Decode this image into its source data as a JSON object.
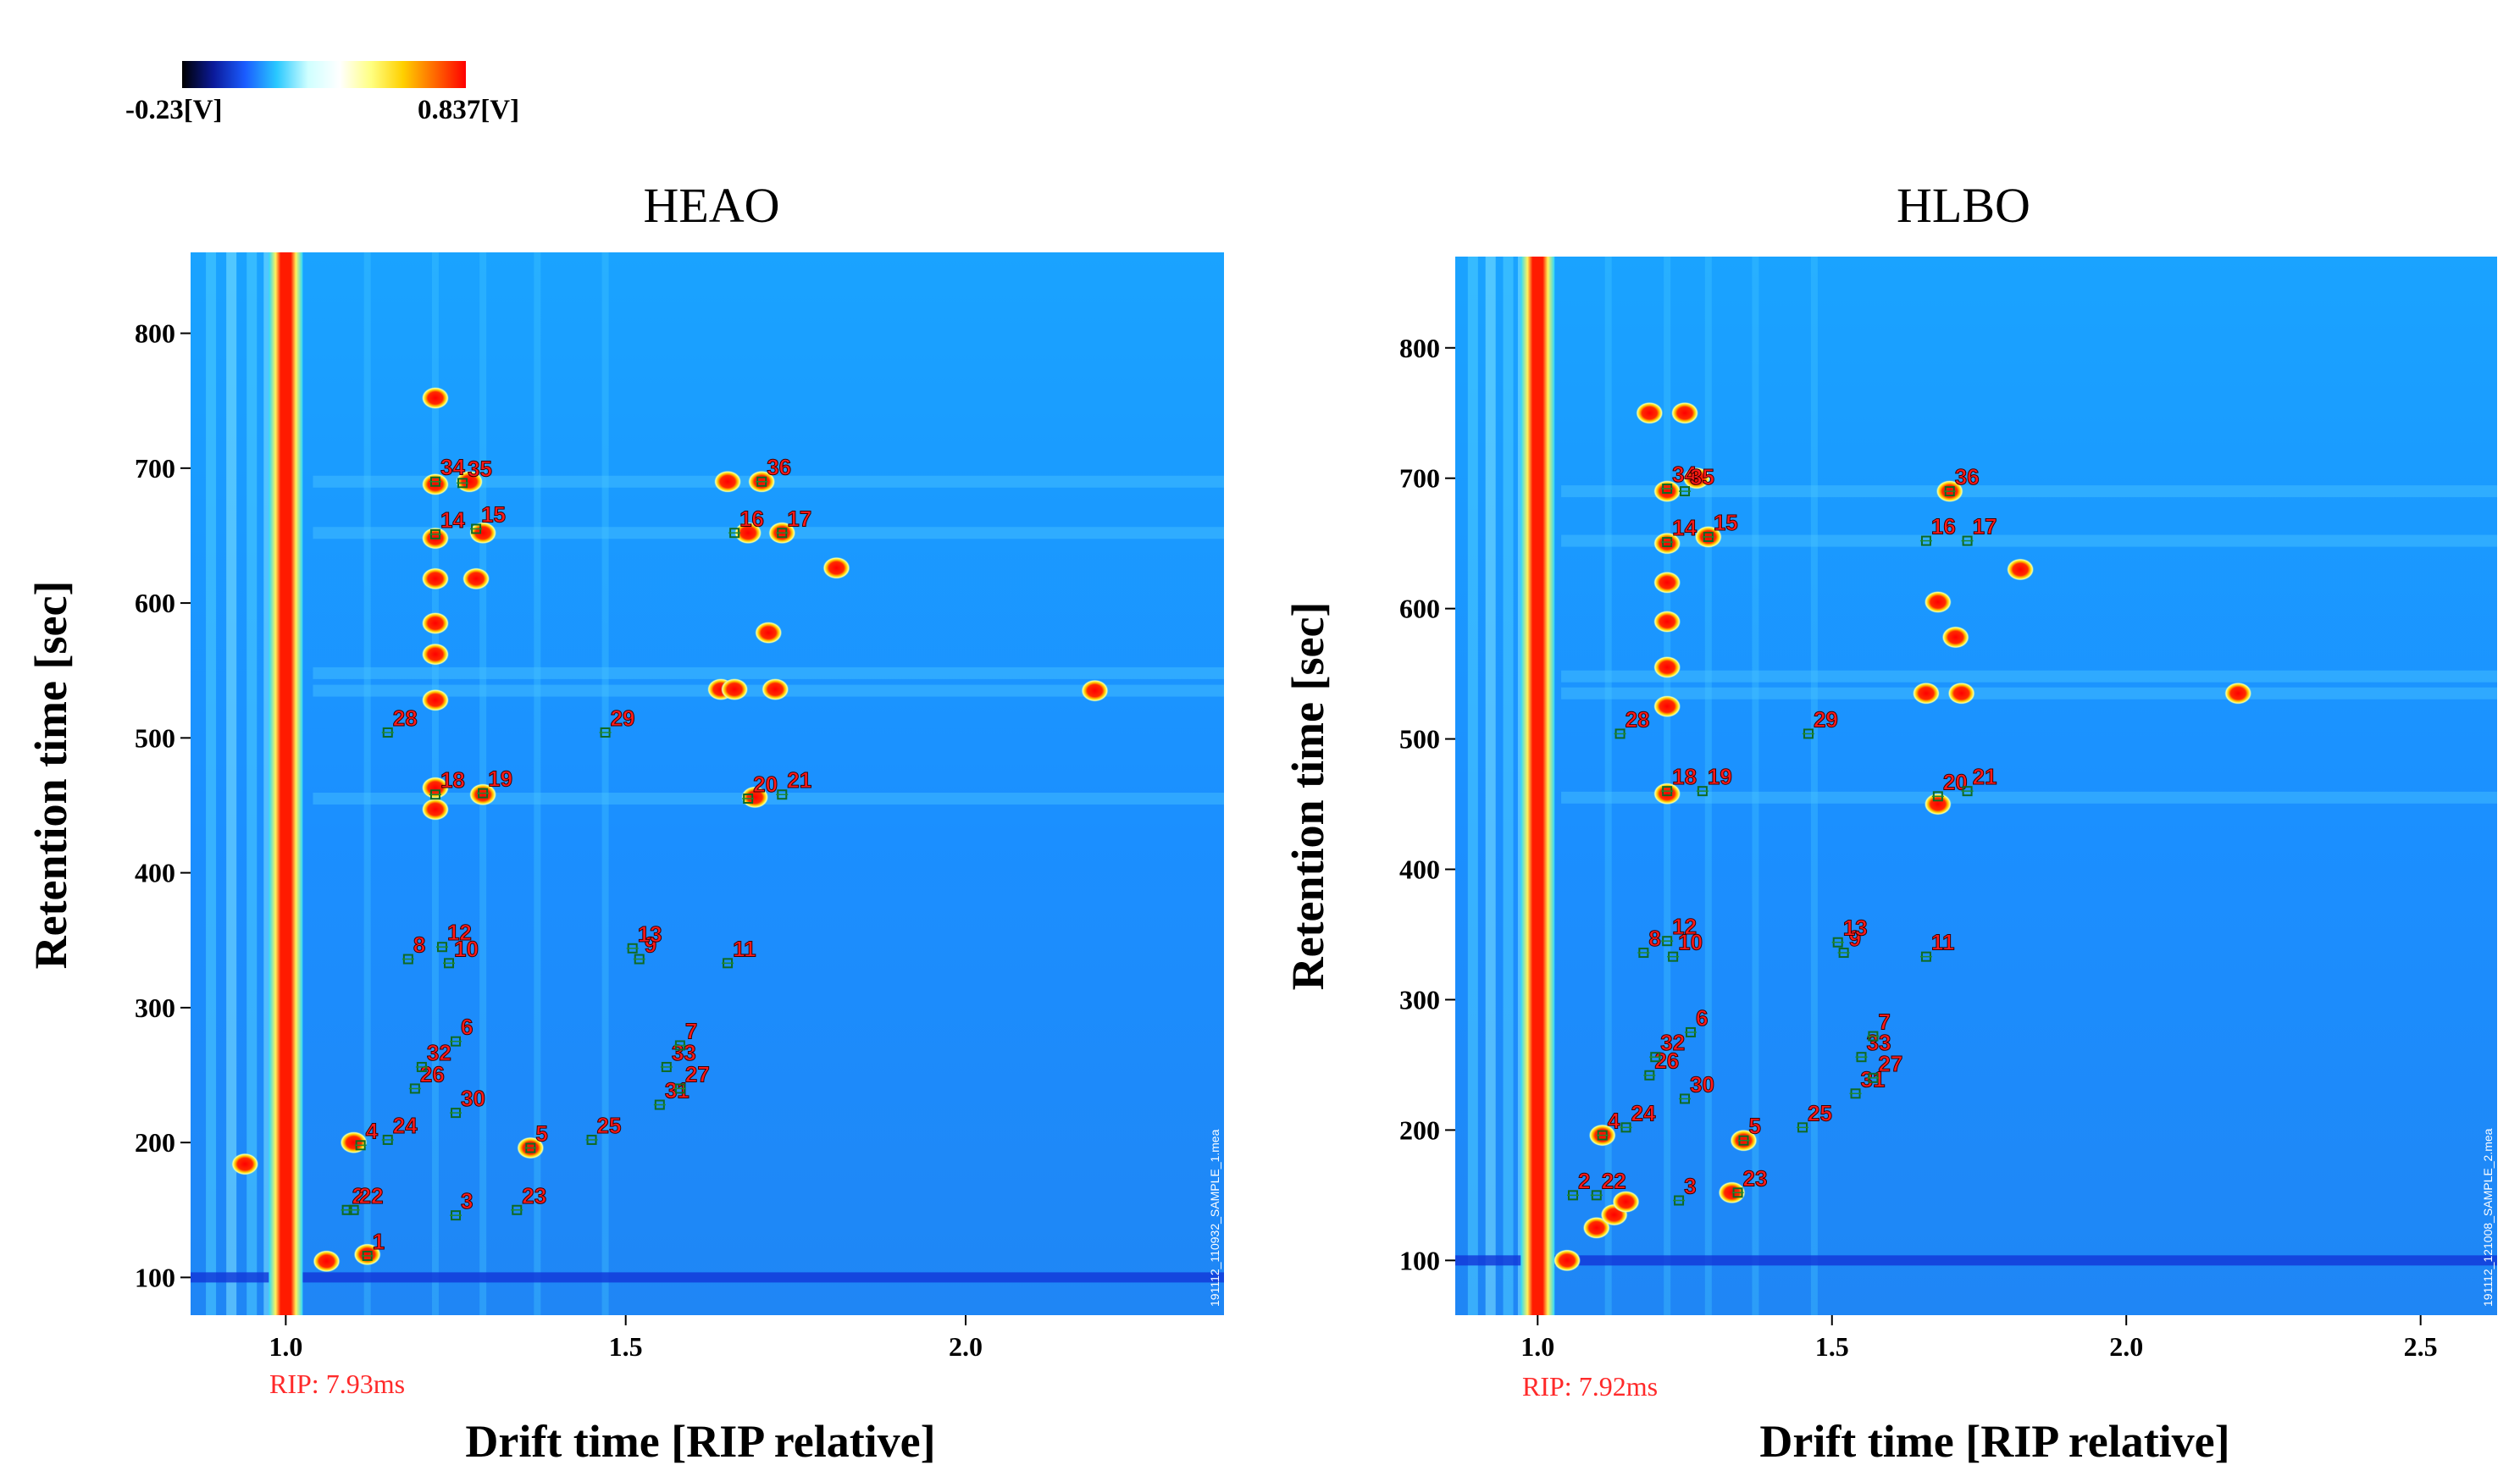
{
  "colorbar": {
    "min_label": "-0.23[V]",
    "max_label": "0.837[V]",
    "stops": [
      "#000000",
      "#0b1a9a",
      "#1a5cff",
      "#29c8ff",
      "#cfffff",
      "#ffffff",
      "#ffff80",
      "#ffd000",
      "#ff6a00",
      "#ff0000"
    ]
  },
  "chart_data": [
    {
      "type": "heatmap",
      "title": "HEAO",
      "xlabel": "Drift time [RIP relative]",
      "ylabel": "Retention time [sec]",
      "xlim": [
        0.86,
        2.38
      ],
      "ylim": [
        72,
        860
      ],
      "xticks": [
        1.0,
        1.5,
        2.0
      ],
      "xtick_labels": [
        "1.0",
        "1.5",
        "2.0"
      ],
      "yticks": [
        100,
        200,
        300,
        400,
        500,
        600,
        700,
        800
      ],
      "ytick_labels": [
        "100",
        "200",
        "300",
        "400",
        "500",
        "600",
        "700",
        "800"
      ],
      "rip_label": "RIP: 7.93ms",
      "footer": "191112_110932_SAMPLE_1.mea",
      "markers": [
        {
          "id": "1",
          "x": 1.12,
          "y": 116
        },
        {
          "id": "2",
          "x": 1.09,
          "y": 150
        },
        {
          "id": "22",
          "x": 1.1,
          "y": 150
        },
        {
          "id": "3",
          "x": 1.25,
          "y": 146
        },
        {
          "id": "23",
          "x": 1.34,
          "y": 150
        },
        {
          "id": "4",
          "x": 1.11,
          "y": 198
        },
        {
          "id": "24",
          "x": 1.15,
          "y": 202
        },
        {
          "id": "5",
          "x": 1.36,
          "y": 196
        },
        {
          "id": "25",
          "x": 1.45,
          "y": 202
        },
        {
          "id": "26",
          "x": 1.19,
          "y": 240
        },
        {
          "id": "32",
          "x": 1.2,
          "y": 256
        },
        {
          "id": "30",
          "x": 1.25,
          "y": 222
        },
        {
          "id": "6",
          "x": 1.25,
          "y": 275
        },
        {
          "id": "31",
          "x": 1.55,
          "y": 228
        },
        {
          "id": "27",
          "x": 1.58,
          "y": 240
        },
        {
          "id": "33",
          "x": 1.56,
          "y": 256
        },
        {
          "id": "7",
          "x": 1.58,
          "y": 272
        },
        {
          "id": "8",
          "x": 1.18,
          "y": 336
        },
        {
          "id": "12",
          "x": 1.23,
          "y": 345
        },
        {
          "id": "10",
          "x": 1.24,
          "y": 333
        },
        {
          "id": "9",
          "x": 1.52,
          "y": 336
        },
        {
          "id": "13",
          "x": 1.51,
          "y": 344
        },
        {
          "id": "11",
          "x": 1.65,
          "y": 333
        },
        {
          "id": "18",
          "x": 1.22,
          "y": 458
        },
        {
          "id": "19",
          "x": 1.29,
          "y": 459
        },
        {
          "id": "20",
          "x": 1.68,
          "y": 455
        },
        {
          "id": "21",
          "x": 1.73,
          "y": 458
        },
        {
          "id": "28",
          "x": 1.15,
          "y": 504
        },
        {
          "id": "29",
          "x": 1.47,
          "y": 504
        },
        {
          "id": "14",
          "x": 1.22,
          "y": 651
        },
        {
          "id": "15",
          "x": 1.28,
          "y": 655
        },
        {
          "id": "16",
          "x": 1.66,
          "y": 652
        },
        {
          "id": "17",
          "x": 1.73,
          "y": 652
        },
        {
          "id": "34",
          "x": 1.22,
          "y": 690
        },
        {
          "id": "35",
          "x": 1.26,
          "y": 689
        },
        {
          "id": "36",
          "x": 1.7,
          "y": 690
        }
      ],
      "hotspots": [
        {
          "x": 0.94,
          "y": 184
        },
        {
          "x": 1.06,
          "y": 112
        },
        {
          "x": 1.12,
          "y": 117
        },
        {
          "x": 1.1,
          "y": 200
        },
        {
          "x": 1.36,
          "y": 196
        },
        {
          "x": 1.22,
          "y": 447
        },
        {
          "x": 1.22,
          "y": 463
        },
        {
          "x": 1.29,
          "y": 458
        },
        {
          "x": 1.22,
          "y": 528
        },
        {
          "x": 1.22,
          "y": 562
        },
        {
          "x": 1.22,
          "y": 585
        },
        {
          "x": 1.22,
          "y": 618
        },
        {
          "x": 1.28,
          "y": 618
        },
        {
          "x": 1.22,
          "y": 648
        },
        {
          "x": 1.29,
          "y": 652
        },
        {
          "x": 1.22,
          "y": 688
        },
        {
          "x": 1.27,
          "y": 690
        },
        {
          "x": 1.22,
          "y": 752
        },
        {
          "x": 1.69,
          "y": 456
        },
        {
          "x": 1.64,
          "y": 536
        },
        {
          "x": 1.66,
          "y": 536
        },
        {
          "x": 1.72,
          "y": 536
        },
        {
          "x": 1.71,
          "y": 578
        },
        {
          "x": 1.81,
          "y": 626
        },
        {
          "x": 1.68,
          "y": 652
        },
        {
          "x": 1.73,
          "y": 652
        },
        {
          "x": 1.65,
          "y": 690
        },
        {
          "x": 1.7,
          "y": 690
        },
        {
          "x": 2.19,
          "y": 535
        }
      ]
    },
    {
      "type": "heatmap",
      "title": "HLBO",
      "xlabel": "Drift time [RIP relative]",
      "ylabel": "Retention time [sec]",
      "xlim": [
        0.86,
        2.63
      ],
      "ylim": [
        58,
        870
      ],
      "xticks": [
        1.0,
        1.5,
        2.0,
        2.5
      ],
      "xtick_labels": [
        "1.0",
        "1.5",
        "2.0",
        "2.5"
      ],
      "yticks": [
        100,
        200,
        300,
        400,
        500,
        600,
        700,
        800
      ],
      "ytick_labels": [
        "100",
        "200",
        "300",
        "400",
        "500",
        "600",
        "700",
        "800"
      ],
      "rip_label": "RIP: 7.92ms",
      "footer": "191112_121008_SAMPLE_2.mea",
      "markers": [
        {
          "id": "2",
          "x": 1.06,
          "y": 150
        },
        {
          "id": "22",
          "x": 1.1,
          "y": 150
        },
        {
          "id": "3",
          "x": 1.24,
          "y": 146
        },
        {
          "id": "23",
          "x": 1.34,
          "y": 152
        },
        {
          "id": "4",
          "x": 1.11,
          "y": 196
        },
        {
          "id": "24",
          "x": 1.15,
          "y": 202
        },
        {
          "id": "5",
          "x": 1.35,
          "y": 192
        },
        {
          "id": "25",
          "x": 1.45,
          "y": 202
        },
        {
          "id": "26",
          "x": 1.19,
          "y": 242
        },
        {
          "id": "32",
          "x": 1.2,
          "y": 256
        },
        {
          "id": "30",
          "x": 1.25,
          "y": 224
        },
        {
          "id": "6",
          "x": 1.26,
          "y": 275
        },
        {
          "id": "31",
          "x": 1.54,
          "y": 228
        },
        {
          "id": "27",
          "x": 1.57,
          "y": 240
        },
        {
          "id": "33",
          "x": 1.55,
          "y": 256
        },
        {
          "id": "7",
          "x": 1.57,
          "y": 272
        },
        {
          "id": "8",
          "x": 1.18,
          "y": 336
        },
        {
          "id": "12",
          "x": 1.22,
          "y": 345
        },
        {
          "id": "10",
          "x": 1.23,
          "y": 333
        },
        {
          "id": "9",
          "x": 1.52,
          "y": 336
        },
        {
          "id": "13",
          "x": 1.51,
          "y": 344
        },
        {
          "id": "11",
          "x": 1.66,
          "y": 333
        },
        {
          "id": "18",
          "x": 1.22,
          "y": 460
        },
        {
          "id": "19",
          "x": 1.28,
          "y": 460
        },
        {
          "id": "20",
          "x": 1.68,
          "y": 456
        },
        {
          "id": "21",
          "x": 1.73,
          "y": 460
        },
        {
          "id": "28",
          "x": 1.14,
          "y": 504
        },
        {
          "id": "29",
          "x": 1.46,
          "y": 504
        },
        {
          "id": "14",
          "x": 1.22,
          "y": 651
        },
        {
          "id": "15",
          "x": 1.29,
          "y": 655
        },
        {
          "id": "16",
          "x": 1.66,
          "y": 652
        },
        {
          "id": "17",
          "x": 1.73,
          "y": 652
        },
        {
          "id": "34",
          "x": 1.22,
          "y": 692
        },
        {
          "id": "35",
          "x": 1.25,
          "y": 690
        },
        {
          "id": "36",
          "x": 1.7,
          "y": 690
        }
      ],
      "hotspots": [
        {
          "x": 1.05,
          "y": 100
        },
        {
          "x": 1.1,
          "y": 125
        },
        {
          "x": 1.13,
          "y": 135
        },
        {
          "x": 1.15,
          "y": 145
        },
        {
          "x": 1.33,
          "y": 152
        },
        {
          "x": 1.11,
          "y": 196
        },
        {
          "x": 1.35,
          "y": 192
        },
        {
          "x": 1.22,
          "y": 458
        },
        {
          "x": 1.22,
          "y": 525
        },
        {
          "x": 1.22,
          "y": 555
        },
        {
          "x": 1.22,
          "y": 590
        },
        {
          "x": 1.22,
          "y": 620
        },
        {
          "x": 1.22,
          "y": 650
        },
        {
          "x": 1.29,
          "y": 655
        },
        {
          "x": 1.22,
          "y": 690
        },
        {
          "x": 1.27,
          "y": 700
        },
        {
          "x": 1.19,
          "y": 750
        },
        {
          "x": 1.25,
          "y": 750
        },
        {
          "x": 1.68,
          "y": 450
        },
        {
          "x": 1.66,
          "y": 535
        },
        {
          "x": 1.72,
          "y": 535
        },
        {
          "x": 1.71,
          "y": 578
        },
        {
          "x": 1.68,
          "y": 605
        },
        {
          "x": 1.82,
          "y": 630
        },
        {
          "x": 1.7,
          "y": 690
        },
        {
          "x": 2.19,
          "y": 535
        }
      ]
    }
  ]
}
